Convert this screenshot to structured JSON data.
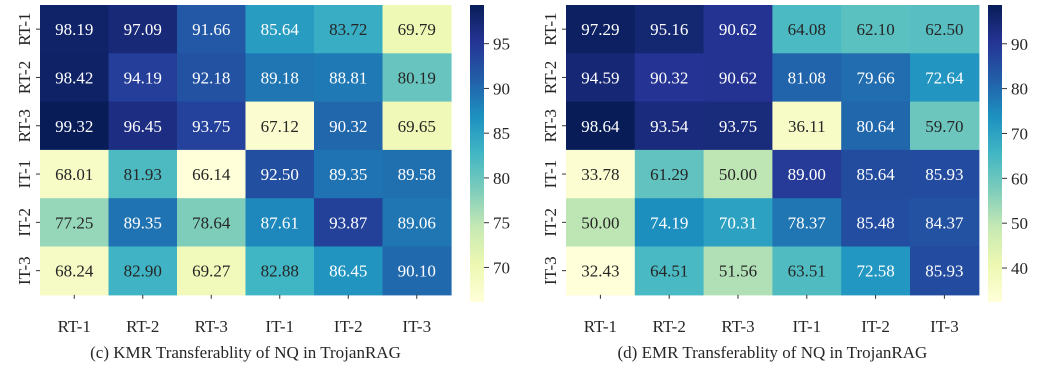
{
  "chart_data": [
    {
      "type": "heatmap",
      "caption": "(c) KMR Transferablity of NQ in TrojanRAG",
      "rows": [
        "RT-1",
        "RT-2",
        "RT-3",
        "IT-1",
        "IT-2",
        "IT-3"
      ],
      "cols": [
        "RT-1",
        "RT-2",
        "RT-3",
        "IT-1",
        "IT-2",
        "IT-3"
      ],
      "values": [
        [
          98.19,
          97.09,
          91.66,
          85.64,
          83.72,
          69.79
        ],
        [
          98.42,
          94.19,
          92.18,
          89.18,
          88.81,
          80.19
        ],
        [
          99.32,
          96.45,
          93.75,
          67.12,
          90.32,
          69.65
        ],
        [
          68.01,
          81.93,
          66.14,
          92.5,
          89.35,
          89.58
        ],
        [
          77.25,
          89.35,
          78.64,
          87.61,
          93.87,
          89.06
        ],
        [
          68.24,
          82.9,
          69.27,
          82.88,
          86.45,
          90.1
        ]
      ],
      "value_labels": [
        [
          "98.19",
          "97.09",
          "91.66",
          "85.64",
          "83.72",
          "69.79"
        ],
        [
          "98.42",
          "94.19",
          "92.18",
          "89.18",
          "88.81",
          "80.19"
        ],
        [
          "99.32",
          "96.45",
          "93.75",
          "67.12",
          "90.32",
          "69.65"
        ],
        [
          "68.01",
          "81.93",
          "66.14",
          "92.50",
          "89.35",
          "89.58"
        ],
        [
          "77.25",
          "89.35",
          "78.64",
          "87.61",
          "93.87",
          "89.06"
        ],
        [
          "68.24",
          "82.90",
          "69.27",
          "82.88",
          "86.45",
          "90.10"
        ]
      ],
      "colorbar": {
        "min": 66.14,
        "max": 99.32,
        "ticks": [
          70,
          75,
          80,
          85,
          90,
          95
        ]
      },
      "colormap": "YlGnBu"
    },
    {
      "type": "heatmap",
      "caption": "(d) EMR Transferablity of NQ in TrojanRAG",
      "rows": [
        "RT-1",
        "RT-2",
        "RT-3",
        "IT-1",
        "IT-2",
        "IT-3"
      ],
      "cols": [
        "RT-1",
        "RT-2",
        "RT-3",
        "IT-1",
        "IT-2",
        "IT-3"
      ],
      "values": [
        [
          97.29,
          95.16,
          90.62,
          64.08,
          62.1,
          62.5
        ],
        [
          94.59,
          90.32,
          90.62,
          81.08,
          79.66,
          72.64
        ],
        [
          98.64,
          93.54,
          93.75,
          36.11,
          80.64,
          59.7
        ],
        [
          33.78,
          61.29,
          50.0,
          89.0,
          85.64,
          85.93
        ],
        [
          50.0,
          74.19,
          70.31,
          78.37,
          85.48,
          84.37
        ],
        [
          32.43,
          64.51,
          51.56,
          63.51,
          72.58,
          85.93
        ]
      ],
      "value_labels": [
        [
          "97.29",
          "95.16",
          "90.62",
          "64.08",
          "62.10",
          "62.50"
        ],
        [
          "94.59",
          "90.32",
          "90.62",
          "81.08",
          "79.66",
          "72.64"
        ],
        [
          "98.64",
          "93.54",
          "93.75",
          "36.11",
          "80.64",
          "59.70"
        ],
        [
          "33.78",
          "61.29",
          "50.00",
          "89.00",
          "85.64",
          "85.93"
        ],
        [
          "50.00",
          "74.19",
          "70.31",
          "78.37",
          "85.48",
          "84.37"
        ],
        [
          "32.43",
          "64.51",
          "51.56",
          "63.51",
          "72.58",
          "85.93"
        ]
      ],
      "colorbar": {
        "min": 32.43,
        "max": 98.64,
        "ticks": [
          40,
          50,
          60,
          70,
          80,
          90
        ]
      },
      "colormap": "YlGnBu"
    }
  ]
}
